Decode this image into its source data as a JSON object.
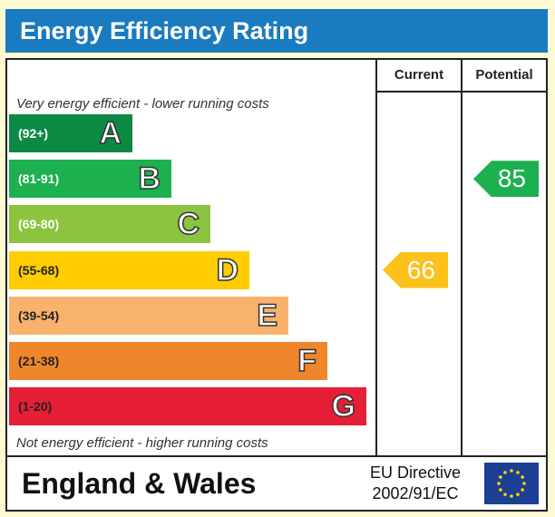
{
  "title": "Energy Efficiency Rating",
  "columns": {
    "current": "Current",
    "potential": "Potential"
  },
  "captions": {
    "top": "Very energy efficient - lower running costs",
    "bottom": "Not energy efficient - higher running costs"
  },
  "footer": {
    "region": "England & Wales",
    "directive_line1": "EU Directive",
    "directive_line2": "2002/91/EC"
  },
  "chart_data": {
    "type": "bar",
    "categories": [
      "A",
      "B",
      "C",
      "D",
      "E",
      "F",
      "G"
    ],
    "ranges": [
      "(92+)",
      "(81-91)",
      "(69-80)",
      "(55-68)",
      "(39-54)",
      "(21-38)",
      "(1-20)"
    ],
    "colors": [
      "#0c8a44",
      "#1cb04e",
      "#8cc43f",
      "#ffcc00",
      "#f8b26b",
      "#f0862c",
      "#e51f36"
    ],
    "current": {
      "value": 66,
      "band": "D",
      "color": "#fcc11b"
    },
    "potential": {
      "value": 85,
      "band": "B",
      "color": "#1cb04e"
    }
  }
}
